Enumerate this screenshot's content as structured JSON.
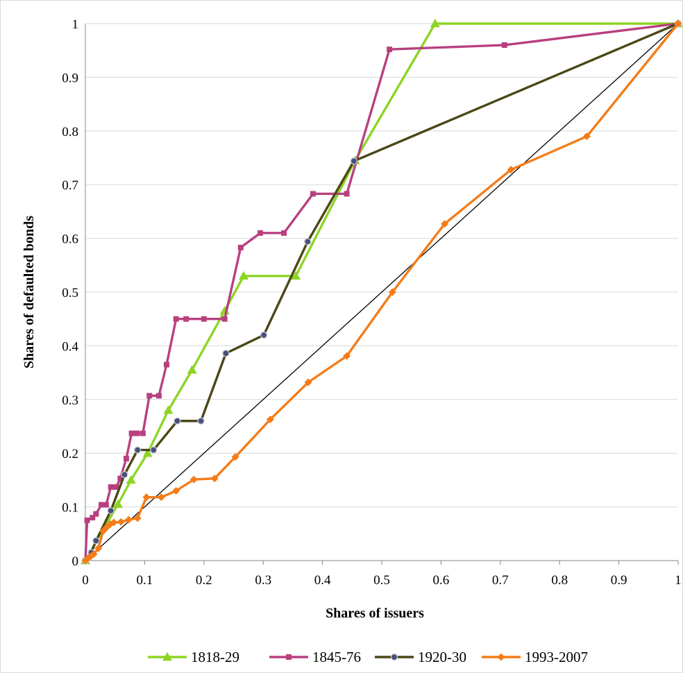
{
  "chart_data": {
    "type": "line",
    "title": "",
    "xlabel": "Shares of issuers",
    "ylabel": "Shares of defaulted bonds",
    "xlim": [
      0,
      1
    ],
    "ylim": [
      0,
      1
    ],
    "x_ticks": [
      "0",
      "0.1",
      "0.2",
      "0.3",
      "0.4",
      "0.5",
      "0.6",
      "0.7",
      "0.8",
      "0.9",
      "1"
    ],
    "y_ticks": [
      "0",
      "0.1",
      "0.2",
      "0.3",
      "0.4",
      "0.5",
      "0.6",
      "0.7",
      "0.8",
      "0.9",
      "1"
    ],
    "grid": "horizontal",
    "legend_position": "bottom",
    "reference_line": {
      "x": [
        0,
        1
      ],
      "y": [
        0,
        1
      ],
      "color": "#000000"
    },
    "series": [
      {
        "name": "1818-29",
        "color": "#8ED424",
        "marker": "triangle",
        "x": [
          0,
          0.055,
          0.077,
          0.105,
          0.14,
          0.18,
          0.235,
          0.267,
          0.355,
          0.455,
          0.59,
          1
        ],
        "y": [
          0,
          0.105,
          0.15,
          0.2,
          0.28,
          0.355,
          0.465,
          0.53,
          0.53,
          0.745,
          1,
          1
        ]
      },
      {
        "name": "1845-76",
        "color": "#B8407F",
        "marker": "square",
        "x": [
          0,
          0.003,
          0.012,
          0.018,
          0.027,
          0.035,
          0.043,
          0.052,
          0.059,
          0.069,
          0.078,
          0.087,
          0.097,
          0.108,
          0.124,
          0.137,
          0.153,
          0.17,
          0.2,
          0.235,
          0.262,
          0.295,
          0.335,
          0.384,
          0.441,
          0.513,
          0.707,
          1
        ],
        "y": [
          0,
          0.075,
          0.08,
          0.087,
          0.104,
          0.104,
          0.137,
          0.137,
          0.153,
          0.19,
          0.237,
          0.237,
          0.237,
          0.307,
          0.307,
          0.365,
          0.45,
          0.45,
          0.45,
          0.45,
          0.583,
          0.61,
          0.61,
          0.683,
          0.683,
          0.952,
          0.96,
          1
        ]
      },
      {
        "name": "1920-30",
        "color": "#4B4717",
        "marker": "circle",
        "x": [
          0,
          0.01,
          0.018,
          0.043,
          0.066,
          0.088,
          0.115,
          0.155,
          0.195,
          0.237,
          0.301,
          0.375,
          0.453,
          1
        ],
        "y": [
          0,
          0.015,
          0.037,
          0.093,
          0.16,
          0.206,
          0.206,
          0.26,
          0.26,
          0.386,
          0.42,
          0.594,
          0.744,
          1
        ]
      },
      {
        "name": "1993-2007",
        "color": "#F47C18",
        "marker": "diamond",
        "x": [
          0,
          0.004,
          0.009,
          0.014,
          0.022,
          0.03,
          0.036,
          0.042,
          0.048,
          0.06,
          0.073,
          0.088,
          0.103,
          0.128,
          0.153,
          0.183,
          0.218,
          0.253,
          0.312,
          0.376,
          0.441,
          0.518,
          0.606,
          0.718,
          0.846,
          1
        ],
        "y": [
          0,
          0.004,
          0.008,
          0.012,
          0.023,
          0.055,
          0.062,
          0.068,
          0.071,
          0.072,
          0.076,
          0.079,
          0.118,
          0.118,
          0.13,
          0.151,
          0.153,
          0.193,
          0.263,
          0.332,
          0.381,
          0.5,
          0.627,
          0.728,
          0.79,
          1
        ]
      }
    ]
  }
}
